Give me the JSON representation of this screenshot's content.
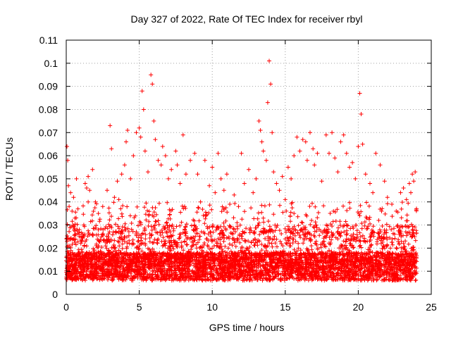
{
  "chart_data": {
    "type": "scatter",
    "title": "Day 327 of 2022, Rate Of TEC Index for receiver rbyl",
    "xlabel": "GPS time / hours",
    "ylabel": "ROTI / TECUs",
    "xlim": [
      0,
      25
    ],
    "ylim": [
      0,
      0.11
    ],
    "x_ticks": [
      0,
      5,
      10,
      15,
      20,
      25
    ],
    "x_tick_labels": [
      "0",
      "5",
      "10",
      "15",
      "20",
      "25"
    ],
    "y_ticks": [
      0,
      0.01,
      0.02,
      0.03,
      0.04,
      0.05,
      0.06,
      0.07,
      0.08,
      0.09,
      0.1,
      0.11
    ],
    "y_tick_labels": [
      "0",
      "0.01",
      "0.02",
      "0.03",
      "0.04",
      "0.05",
      "0.06",
      "0.07",
      "0.08",
      "0.09",
      "0.1",
      "0.11"
    ],
    "grid": true,
    "marker": "plus",
    "color": "#ff0000",
    "series": [
      {
        "points": [
          [
            0.05,
            0.064
          ],
          [
            0.1,
            0.058
          ],
          [
            0.15,
            0.047
          ],
          [
            0.2,
            0.038
          ],
          [
            0.3,
            0.044
          ],
          [
            0.4,
            0.036
          ],
          [
            0.5,
            0.042
          ],
          [
            0.6,
            0.033
          ],
          [
            0.7,
            0.05
          ],
          [
            0.8,
            0.037
          ],
          [
            0.9,
            0.028
          ],
          [
            1.0,
            0.022
          ],
          [
            1.2,
            0.03
          ],
          [
            1.3,
            0.048
          ],
          [
            1.4,
            0.046
          ],
          [
            1.5,
            0.051
          ],
          [
            1.6,
            0.045
          ],
          [
            1.8,
            0.054
          ],
          [
            2.0,
            0.04
          ],
          [
            2.2,
            0.035
          ],
          [
            2.5,
            0.038
          ],
          [
            2.8,
            0.045
          ],
          [
            3.0,
            0.073
          ],
          [
            3.1,
            0.063
          ],
          [
            3.3,
            0.042
          ],
          [
            3.5,
            0.049
          ],
          [
            3.6,
            0.041
          ],
          [
            3.8,
            0.052
          ],
          [
            4.0,
            0.056
          ],
          [
            4.1,
            0.066
          ],
          [
            4.2,
            0.071
          ],
          [
            4.4,
            0.05
          ],
          [
            4.6,
            0.06
          ],
          [
            4.8,
            0.07
          ],
          [
            5.0,
            0.072
          ],
          [
            5.1,
            0.068
          ],
          [
            5.2,
            0.088
          ],
          [
            5.3,
            0.08
          ],
          [
            5.4,
            0.062
          ],
          [
            5.6,
            0.053
          ],
          [
            5.8,
            0.095
          ],
          [
            5.9,
            0.091
          ],
          [
            6.0,
            0.075
          ],
          [
            6.1,
            0.067
          ],
          [
            6.3,
            0.058
          ],
          [
            6.5,
            0.056
          ],
          [
            6.6,
            0.064
          ],
          [
            6.8,
            0.06
          ],
          [
            7.0,
            0.05
          ],
          [
            7.2,
            0.054
          ],
          [
            7.5,
            0.062
          ],
          [
            7.6,
            0.056
          ],
          [
            7.8,
            0.048
          ],
          [
            8.0,
            0.069
          ],
          [
            8.2,
            0.052
          ],
          [
            8.5,
            0.058
          ],
          [
            8.8,
            0.061
          ],
          [
            9.0,
            0.052
          ],
          [
            9.2,
            0.04
          ],
          [
            9.5,
            0.058
          ],
          [
            9.8,
            0.047
          ],
          [
            10.0,
            0.055
          ],
          [
            10.2,
            0.044
          ],
          [
            10.4,
            0.061
          ],
          [
            10.6,
            0.05
          ],
          [
            10.8,
            0.045
          ],
          [
            11.0,
            0.052
          ],
          [
            11.2,
            0.039
          ],
          [
            11.5,
            0.043
          ],
          [
            11.8,
            0.038
          ],
          [
            12.0,
            0.061
          ],
          [
            12.2,
            0.048
          ],
          [
            12.5,
            0.054
          ],
          [
            12.8,
            0.044
          ],
          [
            13.0,
            0.05
          ],
          [
            13.2,
            0.075
          ],
          [
            13.3,
            0.071
          ],
          [
            13.4,
            0.066
          ],
          [
            13.5,
            0.062
          ],
          [
            13.7,
            0.058
          ],
          [
            13.8,
            0.083
          ],
          [
            13.9,
            0.101
          ],
          [
            14.0,
            0.091
          ],
          [
            14.1,
            0.07
          ],
          [
            14.2,
            0.053
          ],
          [
            14.4,
            0.048
          ],
          [
            14.6,
            0.045
          ],
          [
            14.8,
            0.051
          ],
          [
            15.0,
            0.041
          ],
          [
            15.2,
            0.055
          ],
          [
            15.4,
            0.05
          ],
          [
            15.6,
            0.06
          ],
          [
            15.8,
            0.068
          ],
          [
            16.0,
            0.062
          ],
          [
            16.2,
            0.067
          ],
          [
            16.4,
            0.066
          ],
          [
            16.5,
            0.058
          ],
          [
            16.7,
            0.07
          ],
          [
            16.9,
            0.063
          ],
          [
            17.0,
            0.056
          ],
          [
            17.2,
            0.061
          ],
          [
            17.5,
            0.049
          ],
          [
            17.8,
            0.069
          ],
          [
            18.0,
            0.061
          ],
          [
            18.2,
            0.07
          ],
          [
            18.4,
            0.059
          ],
          [
            18.6,
            0.053
          ],
          [
            18.8,
            0.066
          ],
          [
            19.0,
            0.069
          ],
          [
            19.2,
            0.061
          ],
          [
            19.4,
            0.055
          ],
          [
            19.6,
            0.057
          ],
          [
            19.8,
            0.05
          ],
          [
            20.0,
            0.064
          ],
          [
            20.1,
            0.087
          ],
          [
            20.2,
            0.078
          ],
          [
            20.3,
            0.065
          ],
          [
            20.5,
            0.052
          ],
          [
            20.8,
            0.048
          ],
          [
            21.0,
            0.044
          ],
          [
            21.2,
            0.061
          ],
          [
            21.5,
            0.056
          ],
          [
            21.8,
            0.049
          ],
          [
            22.0,
            0.042
          ],
          [
            22.3,
            0.039
          ],
          [
            22.6,
            0.036
          ],
          [
            22.9,
            0.044
          ],
          [
            23.1,
            0.046
          ],
          [
            23.3,
            0.041
          ],
          [
            23.5,
            0.048
          ],
          [
            23.6,
            0.044
          ],
          [
            23.7,
            0.052
          ],
          [
            23.8,
            0.049
          ],
          [
            23.9,
            0.053
          ],
          [
            0.3,
            0.012
          ],
          [
            0.6,
            0.009
          ],
          [
            0.9,
            0.015
          ],
          [
            1.1,
            0.011
          ],
          [
            1.4,
            0.018
          ],
          [
            1.7,
            0.013
          ],
          [
            2.1,
            0.01
          ],
          [
            2.4,
            0.016
          ],
          [
            2.7,
            0.021
          ],
          [
            3.0,
            0.014
          ],
          [
            3.3,
            0.011
          ],
          [
            3.6,
            0.019
          ],
          [
            3.9,
            0.024
          ],
          [
            4.2,
            0.017
          ],
          [
            4.5,
            0.012
          ],
          [
            4.8,
            0.027
          ],
          [
            5.1,
            0.031
          ],
          [
            5.4,
            0.022
          ],
          [
            5.7,
            0.018
          ],
          [
            6.0,
            0.029
          ],
          [
            6.3,
            0.015
          ],
          [
            6.6,
            0.021
          ],
          [
            6.9,
            0.013
          ],
          [
            7.2,
            0.025
          ],
          [
            7.5,
            0.017
          ],
          [
            7.8,
            0.011
          ],
          [
            8.1,
            0.023
          ],
          [
            8.4,
            0.016
          ],
          [
            8.7,
            0.028
          ],
          [
            9.0,
            0.013
          ],
          [
            9.3,
            0.019
          ],
          [
            9.6,
            0.024
          ],
          [
            9.9,
            0.011
          ],
          [
            10.2,
            0.017
          ],
          [
            10.5,
            0.026
          ],
          [
            10.8,
            0.014
          ],
          [
            11.1,
            0.02
          ],
          [
            11.4,
            0.012
          ],
          [
            11.7,
            0.031
          ],
          [
            12.0,
            0.018
          ],
          [
            12.3,
            0.023
          ],
          [
            12.6,
            0.01
          ],
          [
            12.9,
            0.027
          ],
          [
            13.2,
            0.016
          ],
          [
            13.5,
            0.033
          ],
          [
            13.8,
            0.021
          ],
          [
            14.1,
            0.014
          ],
          [
            14.4,
            0.029
          ],
          [
            14.7,
            0.018
          ],
          [
            15.0,
            0.024
          ],
          [
            15.3,
            0.013
          ],
          [
            15.6,
            0.035
          ],
          [
            15.9,
            0.02
          ],
          [
            16.2,
            0.027
          ],
          [
            16.5,
            0.015
          ],
          [
            16.8,
            0.032
          ],
          [
            17.1,
            0.022
          ],
          [
            17.4,
            0.012
          ],
          [
            17.7,
            0.028
          ],
          [
            18.0,
            0.019
          ],
          [
            18.3,
            0.036
          ],
          [
            18.6,
            0.024
          ],
          [
            18.9,
            0.013
          ],
          [
            19.2,
            0.03
          ],
          [
            19.5,
            0.021
          ],
          [
            19.8,
            0.016
          ],
          [
            20.1,
            0.034
          ],
          [
            20.4,
            0.023
          ],
          [
            20.7,
            0.011
          ],
          [
            21.0,
            0.027
          ],
          [
            21.3,
            0.018
          ],
          [
            21.6,
            0.025
          ],
          [
            21.9,
            0.013
          ],
          [
            22.2,
            0.02
          ],
          [
            22.5,
            0.016
          ],
          [
            22.8,
            0.011
          ],
          [
            23.1,
            0.022
          ],
          [
            23.4,
            0.014
          ],
          [
            23.7,
            0.019
          ],
          [
            23.9,
            0.012
          ]
        ]
      }
    ]
  }
}
